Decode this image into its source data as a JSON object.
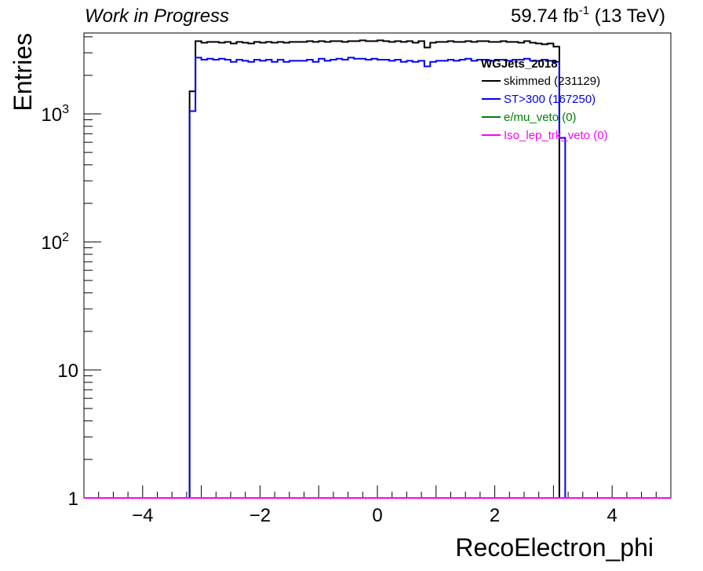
{
  "header": {
    "left_text": "Work in Progress",
    "lumi_main": "59.74 fb",
    "lumi_sup": "-1",
    "lumi_tail": " (13 TeV)"
  },
  "chart_data": {
    "type": "histogram",
    "xlabel": "RecoElectron_phi",
    "ylabel": "Entries",
    "xlim": [
      -5,
      5
    ],
    "ylim": [
      1,
      4000
    ],
    "yscale": "log",
    "x_ticks": [
      -4,
      -2,
      0,
      2,
      4
    ],
    "x_tick_labels": [
      "−4",
      "−2",
      "0",
      "2",
      "4"
    ],
    "y_tick_labels": [
      {
        "value": 1,
        "base": "1",
        "exp": ""
      },
      {
        "value": 10,
        "base": "10",
        "exp": ""
      },
      {
        "value": 100,
        "base": "10",
        "exp": "2"
      },
      {
        "value": 1000,
        "base": "10",
        "exp": "3"
      }
    ],
    "legend": {
      "title": "WGJets_2018",
      "position": "top-right"
    },
    "bin_edges_start": -3.2,
    "bin_width": 0.1,
    "series": [
      {
        "name": "skimmed (231129)",
        "color": "#000000",
        "values": [
          1500,
          3700,
          3600,
          3650,
          3650,
          3600,
          3650,
          3550,
          3650,
          3600,
          3550,
          3650,
          3600,
          3650,
          3600,
          3650,
          3600,
          3650,
          3650,
          3650,
          3700,
          3650,
          3700,
          3650,
          3700,
          3700,
          3650,
          3700,
          3700,
          3750,
          3700,
          3700,
          3750,
          3700,
          3650,
          3700,
          3650,
          3700,
          3600,
          3700,
          3300,
          3600,
          3650,
          3650,
          3700,
          3650,
          3650,
          3700,
          3650,
          3700,
          3700,
          3650,
          3650,
          3700,
          3650,
          3650,
          3600,
          3700,
          3600,
          3550,
          3500,
          3550,
          3350,
          0
        ]
      },
      {
        "name": "ST>300 (167250)",
        "color": "#0000ff",
        "values": [
          1050,
          2750,
          2650,
          2700,
          2650,
          2700,
          2650,
          2550,
          2650,
          2600,
          2550,
          2650,
          2600,
          2650,
          2550,
          2650,
          2550,
          2600,
          2600,
          2600,
          2650,
          2550,
          2700,
          2600,
          2650,
          2700,
          2650,
          2750,
          2700,
          2700,
          2650,
          2700,
          2650,
          2650,
          2600,
          2650,
          2550,
          2600,
          2550,
          2600,
          2350,
          2550,
          2600,
          2600,
          2650,
          2600,
          2650,
          2700,
          2600,
          2650,
          2650,
          2600,
          2650,
          2650,
          2600,
          2650,
          2650,
          2700,
          2600,
          2600,
          2650,
          2600,
          2550,
          650
        ]
      },
      {
        "name": "e/mu_veto (0)",
        "color": "#008000",
        "values": []
      },
      {
        "name": "Iso_lep_trk_veto (0)",
        "color": "#ff00ff",
        "values": []
      }
    ]
  }
}
